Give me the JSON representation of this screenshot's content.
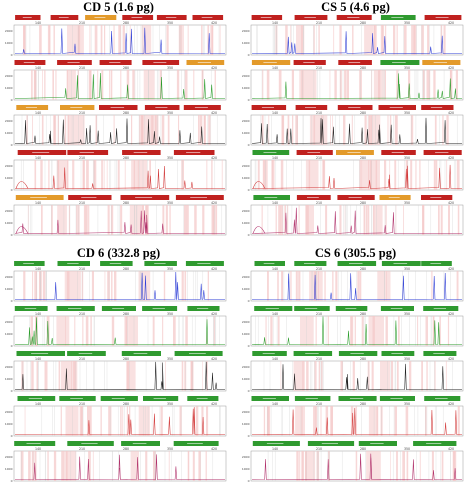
{
  "colors": {
    "blue": "#2f3fd6",
    "green": "#2a9c2a",
    "black": "#222222",
    "red": "#d23a3a",
    "magenta": "#b0306a",
    "bin_red": "#c0211f",
    "bin_green": "#2f9a2f",
    "bin_orange": "#e39a2a",
    "shade": "#f4c9c9"
  },
  "chart_data": [
    {
      "type": "line",
      "title": "CD 5 (1.6 pg)",
      "panels": [
        {
          "dye": "blue",
          "bins": [
            "red",
            "red",
            "orange",
            "red",
            "red",
            "red"
          ]
        },
        {
          "dye": "green",
          "bins": [
            "red",
            "red",
            "red",
            "red",
            "orange"
          ]
        },
        {
          "dye": "black",
          "bins": [
            "orange",
            "orange",
            "red",
            "red",
            "red"
          ]
        },
        {
          "dye": "red",
          "bins": [
            "red",
            "red",
            "red",
            "red"
          ]
        },
        {
          "dye": "magenta",
          "bins": [
            "orange",
            "red",
            "red",
            "red"
          ]
        }
      ]
    },
    {
      "type": "line",
      "title": "CS 5 (4.6 pg)",
      "panels": [
        {
          "dye": "blue",
          "bins": [
            "red",
            "red",
            "red",
            "green",
            "red"
          ]
        },
        {
          "dye": "green",
          "bins": [
            "orange",
            "red",
            "red",
            "green",
            "orange"
          ]
        },
        {
          "dye": "black",
          "bins": [
            "red",
            "red",
            "red",
            "red",
            "red"
          ]
        },
        {
          "dye": "red",
          "bins": [
            "green",
            "red",
            "orange",
            "red",
            "red"
          ]
        },
        {
          "dye": "magenta",
          "bins": [
            "green",
            "red",
            "red",
            "orange",
            "red"
          ]
        }
      ]
    },
    {
      "type": "line",
      "title": "CD 6 (332.8 pg)",
      "panels": [
        {
          "dye": "blue",
          "bins": [
            "green",
            "green",
            "green",
            "green",
            "green"
          ]
        },
        {
          "dye": "green",
          "bins": [
            "green",
            "green",
            "green",
            "green",
            "green"
          ]
        },
        {
          "dye": "black",
          "bins": [
            "green",
            "green",
            "green",
            "green"
          ]
        },
        {
          "dye": "red",
          "bins": [
            "green",
            "green",
            "green",
            "green",
            "green"
          ]
        },
        {
          "dye": "magenta",
          "bins": [
            "green",
            "green",
            "green",
            "green"
          ]
        }
      ]
    },
    {
      "type": "line",
      "title": "CS 6 (305.5 pg)",
      "panels": [
        {
          "dye": "blue",
          "bins": [
            "green",
            "green",
            "green",
            "green",
            "green"
          ]
        },
        {
          "dye": "green",
          "bins": [
            "green",
            "green",
            "green",
            "green",
            "green"
          ]
        },
        {
          "dye": "black",
          "bins": [
            "green",
            "green",
            "green",
            "green",
            "green"
          ]
        },
        {
          "dye": "red",
          "bins": [
            "green",
            "green",
            "green",
            "green",
            "green"
          ]
        },
        {
          "dye": "magenta",
          "bins": [
            "green",
            "green",
            "green",
            "green"
          ]
        }
      ]
    }
  ]
}
